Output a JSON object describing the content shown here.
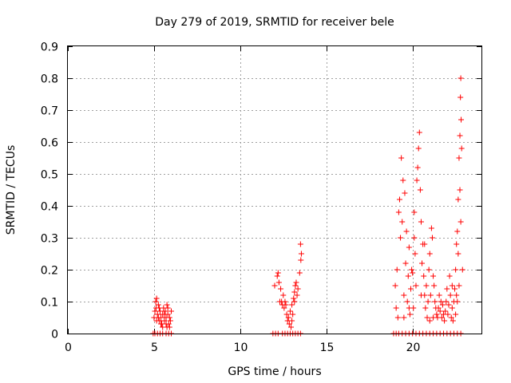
{
  "chart_data": {
    "type": "scatter",
    "title": "Day 279 of 2019, SRMTID for receiver bele",
    "xlabel": "GPS time / hours",
    "ylabel": "SRMTID / TECUs",
    "xlim": [
      0,
      24
    ],
    "ylim": [
      0,
      0.9
    ],
    "xticks": [
      0,
      5,
      10,
      15,
      20
    ],
    "yticks": [
      0,
      0.1,
      0.2,
      0.3,
      0.4,
      0.5,
      0.6,
      0.7,
      0.8,
      0.9
    ],
    "xtick_labels": [
      "0",
      "5",
      "10",
      "15",
      "20"
    ],
    "ytick_labels": [
      "0",
      "0.1",
      "0.2",
      "0.3",
      "0.4",
      "0.5",
      "0.6",
      "0.7",
      "0.8",
      "0.9"
    ],
    "grid": true,
    "marker": "+",
    "color": "#ff0000",
    "series": [
      {
        "name": "SRMTID",
        "points": [
          [
            4.95,
            0
          ],
          [
            5.05,
            0
          ],
          [
            5.2,
            0
          ],
          [
            5.35,
            0
          ],
          [
            5.5,
            0
          ],
          [
            5.7,
            0
          ],
          [
            5.85,
            0
          ],
          [
            6.0,
            0
          ],
          [
            5.0,
            0.05
          ],
          [
            5.05,
            0.07
          ],
          [
            5.1,
            0.1
          ],
          [
            5.12,
            0.08
          ],
          [
            5.15,
            0.11
          ],
          [
            5.2,
            0.06
          ],
          [
            5.25,
            0.09
          ],
          [
            5.3,
            0.04
          ],
          [
            5.35,
            0.07
          ],
          [
            5.4,
            0.05
          ],
          [
            5.45,
            0.03
          ],
          [
            5.5,
            0.06
          ],
          [
            5.55,
            0.08
          ],
          [
            5.6,
            0.04
          ],
          [
            5.65,
            0.07
          ],
          [
            5.7,
            0.05
          ],
          [
            5.75,
            0.09
          ],
          [
            5.8,
            0.06
          ],
          [
            5.85,
            0.03
          ],
          [
            5.9,
            0.05
          ],
          [
            5.95,
            0.04
          ],
          [
            6.0,
            0.07
          ],
          [
            5.5,
            0.02
          ],
          [
            5.7,
            0.03
          ],
          [
            5.3,
            0.08
          ],
          [
            5.6,
            0.06
          ],
          [
            5.8,
            0.08
          ],
          [
            5.4,
            0.03
          ],
          [
            5.9,
            0.02
          ],
          [
            5.25,
            0.05
          ],
          [
            5.15,
            0.04
          ],
          [
            5.75,
            0.02
          ],
          [
            11.9,
            0
          ],
          [
            12.05,
            0
          ],
          [
            12.2,
            0
          ],
          [
            12.45,
            0
          ],
          [
            12.6,
            0
          ],
          [
            12.75,
            0
          ],
          [
            12.9,
            0
          ],
          [
            13.05,
            0
          ],
          [
            13.2,
            0
          ],
          [
            13.35,
            0
          ],
          [
            13.5,
            0
          ],
          [
            12.0,
            0.15
          ],
          [
            12.15,
            0.18
          ],
          [
            12.2,
            0.19
          ],
          [
            12.25,
            0.16
          ],
          [
            12.3,
            0.1
          ],
          [
            12.35,
            0.14
          ],
          [
            12.45,
            0.09
          ],
          [
            12.5,
            0.12
          ],
          [
            12.55,
            0.08
          ],
          [
            12.6,
            0.1
          ],
          [
            12.7,
            0.06
          ],
          [
            12.75,
            0.04
          ],
          [
            12.8,
            0.05
          ],
          [
            12.85,
            0.03
          ],
          [
            12.9,
            0.07
          ],
          [
            12.95,
            0.02
          ],
          [
            13.0,
            0.09
          ],
          [
            13.05,
            0.06
          ],
          [
            13.1,
            0.11
          ],
          [
            13.15,
            0.13
          ],
          [
            13.2,
            0.15
          ],
          [
            13.25,
            0.16
          ],
          [
            13.3,
            0.12
          ],
          [
            13.35,
            0.14
          ],
          [
            13.5,
            0.28
          ],
          [
            13.55,
            0.25
          ],
          [
            13.52,
            0.23
          ],
          [
            13.45,
            0.19
          ],
          [
            12.65,
            0.09
          ],
          [
            13.0,
            0.04
          ],
          [
            13.15,
            0.1
          ],
          [
            12.4,
            0.1
          ],
          [
            18.9,
            0
          ],
          [
            19.05,
            0
          ],
          [
            19.2,
            0
          ],
          [
            19.4,
            0
          ],
          [
            19.6,
            0
          ],
          [
            19.8,
            0
          ],
          [
            20.0,
            0
          ],
          [
            20.2,
            0
          ],
          [
            20.4,
            0
          ],
          [
            20.6,
            0
          ],
          [
            20.8,
            0
          ],
          [
            21.0,
            0
          ],
          [
            21.2,
            0
          ],
          [
            21.4,
            0
          ],
          [
            21.6,
            0
          ],
          [
            21.8,
            0
          ],
          [
            22.0,
            0
          ],
          [
            22.2,
            0
          ],
          [
            22.4,
            0
          ],
          [
            22.6,
            0
          ],
          [
            22.8,
            0
          ],
          [
            19.0,
            0.15
          ],
          [
            19.05,
            0.08
          ],
          [
            19.1,
            0.2
          ],
          [
            19.15,
            0.05
          ],
          [
            19.2,
            0.38
          ],
          [
            19.25,
            0.42
          ],
          [
            19.3,
            0.3
          ],
          [
            19.35,
            0.55
          ],
          [
            19.4,
            0.35
          ],
          [
            19.45,
            0.48
          ],
          [
            19.5,
            0.12
          ],
          [
            19.55,
            0.44
          ],
          [
            19.6,
            0.22
          ],
          [
            19.65,
            0.32
          ],
          [
            19.7,
            0.1
          ],
          [
            19.75,
            0.18
          ],
          [
            19.8,
            0.27
          ],
          [
            19.85,
            0.06
          ],
          [
            19.9,
            0.14
          ],
          [
            19.95,
            0.2
          ],
          [
            20.0,
            0.19
          ],
          [
            20.05,
            0.08
          ],
          [
            20.1,
            0.38
          ],
          [
            20.15,
            0.25
          ],
          [
            20.2,
            0.15
          ],
          [
            20.25,
            0.48
          ],
          [
            20.3,
            0.52
          ],
          [
            20.35,
            0.58
          ],
          [
            20.4,
            0.63
          ],
          [
            20.45,
            0.45
          ],
          [
            20.5,
            0.35
          ],
          [
            20.55,
            0.22
          ],
          [
            20.6,
            0.28
          ],
          [
            20.65,
            0.18
          ],
          [
            20.7,
            0.12
          ],
          [
            20.75,
            0.08
          ],
          [
            20.8,
            0.15
          ],
          [
            20.85,
            0.05
          ],
          [
            20.9,
            0.1
          ],
          [
            20.95,
            0.2
          ],
          [
            21.0,
            0.25
          ],
          [
            21.05,
            0.12
          ],
          [
            21.1,
            0.33
          ],
          [
            21.15,
            0.3
          ],
          [
            21.2,
            0.18
          ],
          [
            21.25,
            0.15
          ],
          [
            21.3,
            0.1
          ],
          [
            21.35,
            0.08
          ],
          [
            21.4,
            0.06
          ],
          [
            21.45,
            0.05
          ],
          [
            21.5,
            0.08
          ],
          [
            21.55,
            0.12
          ],
          [
            21.6,
            0.07
          ],
          [
            21.65,
            0.1
          ],
          [
            21.7,
            0.05
          ],
          [
            21.75,
            0.09
          ],
          [
            21.8,
            0.06
          ],
          [
            21.85,
            0.04
          ],
          [
            21.9,
            0.07
          ],
          [
            21.95,
            0.1
          ],
          [
            22.0,
            0.14
          ],
          [
            22.05,
            0.06
          ],
          [
            22.1,
            0.09
          ],
          [
            22.15,
            0.18
          ],
          [
            22.2,
            0.12
          ],
          [
            22.25,
            0.05
          ],
          [
            22.3,
            0.08
          ],
          [
            22.35,
            0.04
          ],
          [
            22.4,
            0.1
          ],
          [
            22.45,
            0.14
          ],
          [
            22.5,
            0.2
          ],
          [
            22.55,
            0.28
          ],
          [
            22.6,
            0.32
          ],
          [
            22.65,
            0.42
          ],
          [
            22.7,
            0.55
          ],
          [
            22.75,
            0.62
          ],
          [
            22.8,
            0.8
          ],
          [
            22.78,
            0.74
          ],
          [
            22.82,
            0.67
          ],
          [
            22.85,
            0.58
          ],
          [
            22.7,
            0.15
          ],
          [
            22.6,
            0.1
          ],
          [
            22.5,
            0.06
          ],
          [
            22.9,
            0.2
          ],
          [
            22.75,
            0.45
          ],
          [
            22.8,
            0.35
          ],
          [
            22.65,
            0.25
          ],
          [
            22.55,
            0.12
          ],
          [
            19.5,
            0.05
          ],
          [
            20.5,
            0.12
          ],
          [
            21.2,
            0.05
          ],
          [
            19.8,
            0.08
          ],
          [
            20.1,
            0.3
          ],
          [
            21.0,
            0.04
          ],
          [
            22.3,
            0.15
          ],
          [
            20.7,
            0.28
          ]
        ]
      }
    ]
  }
}
